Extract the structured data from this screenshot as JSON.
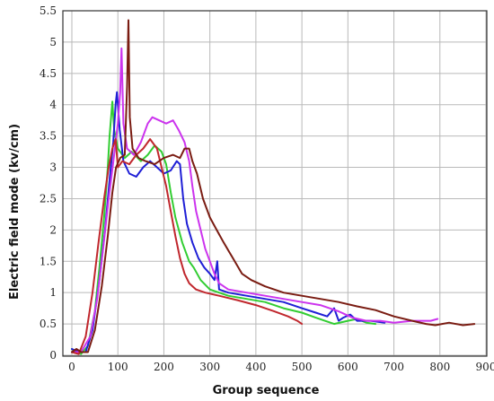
{
  "chart_data": {
    "type": "line",
    "title": "",
    "xlabel": "Group sequence",
    "ylabel": "Electric field mode  (kv/cm)",
    "xlim": [
      0,
      900
    ],
    "ylim": [
      0,
      5.5
    ],
    "grid": true,
    "x_ticks": [
      "0",
      "100",
      "200",
      "300",
      "400",
      "500",
      "600",
      "700",
      "800",
      "900"
    ],
    "y_ticks": [
      "0",
      "0.5",
      "1",
      "1.5",
      "2",
      "2.5",
      "3",
      "3.5",
      "4",
      "4.5",
      "5",
      "5.5"
    ],
    "series": [
      {
        "color": "#32cd32",
        "points": [
          [
            0,
            0.1
          ],
          [
            10,
            0.05
          ],
          [
            20,
            0.02
          ],
          [
            35,
            0.15
          ],
          [
            50,
            0.7
          ],
          [
            60,
            1.4
          ],
          [
            70,
            2.2
          ],
          [
            78,
            3.0
          ],
          [
            82,
            3.5
          ],
          [
            88,
            4.05
          ],
          [
            92,
            3.6
          ],
          [
            100,
            3.3
          ],
          [
            115,
            3.15
          ],
          [
            130,
            3.25
          ],
          [
            150,
            3.1
          ],
          [
            165,
            3.2
          ],
          [
            180,
            3.35
          ],
          [
            195,
            3.25
          ],
          [
            205,
            3.05
          ],
          [
            215,
            2.6
          ],
          [
            225,
            2.2
          ],
          [
            240,
            1.8
          ],
          [
            255,
            1.5
          ],
          [
            265,
            1.4
          ],
          [
            280,
            1.2
          ],
          [
            300,
            1.05
          ],
          [
            340,
            0.95
          ],
          [
            380,
            0.9
          ],
          [
            420,
            0.85
          ],
          [
            460,
            0.75
          ],
          [
            500,
            0.68
          ],
          [
            530,
            0.6
          ],
          [
            550,
            0.55
          ],
          [
            570,
            0.5
          ],
          [
            600,
            0.55
          ],
          [
            620,
            0.58
          ],
          [
            640,
            0.52
          ],
          [
            660,
            0.5
          ]
        ]
      },
      {
        "color": "#1f1fd6",
        "points": [
          [
            0,
            0.1
          ],
          [
            15,
            0.05
          ],
          [
            30,
            0.05
          ],
          [
            45,
            0.4
          ],
          [
            60,
            1.2
          ],
          [
            72,
            2.0
          ],
          [
            82,
            2.8
          ],
          [
            90,
            3.4
          ],
          [
            95,
            4.0
          ],
          [
            98,
            4.2
          ],
          [
            104,
            3.6
          ],
          [
            112,
            3.1
          ],
          [
            125,
            2.9
          ],
          [
            140,
            2.85
          ],
          [
            155,
            3.0
          ],
          [
            170,
            3.1
          ],
          [
            185,
            3.0
          ],
          [
            200,
            2.9
          ],
          [
            215,
            2.95
          ],
          [
            228,
            3.1
          ],
          [
            235,
            3.05
          ],
          [
            242,
            2.5
          ],
          [
            250,
            2.1
          ],
          [
            262,
            1.8
          ],
          [
            275,
            1.55
          ],
          [
            288,
            1.4
          ],
          [
            300,
            1.3
          ],
          [
            310,
            1.2
          ],
          [
            316,
            1.5
          ],
          [
            320,
            1.05
          ],
          [
            340,
            1.0
          ],
          [
            380,
            0.95
          ],
          [
            420,
            0.9
          ],
          [
            460,
            0.85
          ],
          [
            500,
            0.75
          ],
          [
            530,
            0.68
          ],
          [
            555,
            0.62
          ],
          [
            570,
            0.75
          ],
          [
            580,
            0.55
          ],
          [
            590,
            0.6
          ],
          [
            605,
            0.65
          ],
          [
            620,
            0.55
          ],
          [
            650,
            0.55
          ],
          [
            680,
            0.52
          ]
        ]
      },
      {
        "color": "#cc33ee",
        "points": [
          [
            0,
            0.05
          ],
          [
            20,
            0.05
          ],
          [
            40,
            0.3
          ],
          [
            55,
            0.9
          ],
          [
            68,
            1.7
          ],
          [
            80,
            2.5
          ],
          [
            92,
            3.2
          ],
          [
            100,
            3.7
          ],
          [
            105,
            4.2
          ],
          [
            108,
            4.9
          ],
          [
            112,
            3.7
          ],
          [
            120,
            3.3
          ],
          [
            135,
            3.2
          ],
          [
            150,
            3.4
          ],
          [
            165,
            3.7
          ],
          [
            175,
            3.8
          ],
          [
            190,
            3.75
          ],
          [
            205,
            3.7
          ],
          [
            220,
            3.75
          ],
          [
            232,
            3.6
          ],
          [
            245,
            3.4
          ],
          [
            255,
            3.1
          ],
          [
            262,
            2.7
          ],
          [
            270,
            2.3
          ],
          [
            280,
            2.0
          ],
          [
            290,
            1.7
          ],
          [
            300,
            1.5
          ],
          [
            310,
            1.3
          ],
          [
            320,
            1.15
          ],
          [
            340,
            1.05
          ],
          [
            380,
            1.0
          ],
          [
            420,
            0.95
          ],
          [
            460,
            0.9
          ],
          [
            500,
            0.85
          ],
          [
            540,
            0.8
          ],
          [
            580,
            0.7
          ],
          [
            610,
            0.6
          ],
          [
            640,
            0.55
          ],
          [
            670,
            0.55
          ],
          [
            700,
            0.52
          ],
          [
            740,
            0.55
          ],
          [
            780,
            0.55
          ],
          [
            795,
            0.58
          ]
        ]
      },
      {
        "color": "#c0272d",
        "points": [
          [
            0,
            0.05
          ],
          [
            15,
            0.02
          ],
          [
            30,
            0.3
          ],
          [
            45,
            1.0
          ],
          [
            58,
            1.8
          ],
          [
            70,
            2.5
          ],
          [
            80,
            3.0
          ],
          [
            88,
            3.3
          ],
          [
            95,
            3.45
          ],
          [
            100,
            3.0
          ],
          [
            110,
            3.1
          ],
          [
            125,
            3.05
          ],
          [
            140,
            3.2
          ],
          [
            155,
            3.3
          ],
          [
            170,
            3.45
          ],
          [
            185,
            3.3
          ],
          [
            195,
            3.0
          ],
          [
            205,
            2.7
          ],
          [
            215,
            2.3
          ],
          [
            225,
            1.9
          ],
          [
            235,
            1.55
          ],
          [
            245,
            1.3
          ],
          [
            255,
            1.15
          ],
          [
            270,
            1.05
          ],
          [
            290,
            1.0
          ],
          [
            320,
            0.95
          ],
          [
            360,
            0.88
          ],
          [
            400,
            0.8
          ],
          [
            440,
            0.7
          ],
          [
            470,
            0.62
          ],
          [
            490,
            0.55
          ],
          [
            500,
            0.5
          ]
        ]
      },
      {
        "color": "#7a1c12",
        "points": [
          [
            0,
            0.05
          ],
          [
            10,
            0.1
          ],
          [
            20,
            0.05
          ],
          [
            35,
            0.05
          ],
          [
            50,
            0.4
          ],
          [
            65,
            1.1
          ],
          [
            78,
            1.9
          ],
          [
            88,
            2.6
          ],
          [
            96,
            3.0
          ],
          [
            105,
            3.15
          ],
          [
            115,
            3.2
          ],
          [
            120,
            4.3
          ],
          [
            123,
            5.35
          ],
          [
            126,
            3.8
          ],
          [
            132,
            3.3
          ],
          [
            145,
            3.15
          ],
          [
            160,
            3.1
          ],
          [
            180,
            3.05
          ],
          [
            200,
            3.15
          ],
          [
            220,
            3.2
          ],
          [
            235,
            3.15
          ],
          [
            245,
            3.3
          ],
          [
            255,
            3.3
          ],
          [
            262,
            3.1
          ],
          [
            272,
            2.9
          ],
          [
            285,
            2.5
          ],
          [
            300,
            2.2
          ],
          [
            315,
            2.0
          ],
          [
            330,
            1.8
          ],
          [
            350,
            1.55
          ],
          [
            370,
            1.3
          ],
          [
            390,
            1.2
          ],
          [
            420,
            1.1
          ],
          [
            460,
            1.0
          ],
          [
            500,
            0.95
          ],
          [
            540,
            0.9
          ],
          [
            580,
            0.85
          ],
          [
            620,
            0.78
          ],
          [
            660,
            0.72
          ],
          [
            700,
            0.62
          ],
          [
            740,
            0.55
          ],
          [
            770,
            0.5
          ],
          [
            790,
            0.48
          ],
          [
            820,
            0.52
          ],
          [
            850,
            0.48
          ],
          [
            875,
            0.5
          ]
        ]
      }
    ]
  }
}
